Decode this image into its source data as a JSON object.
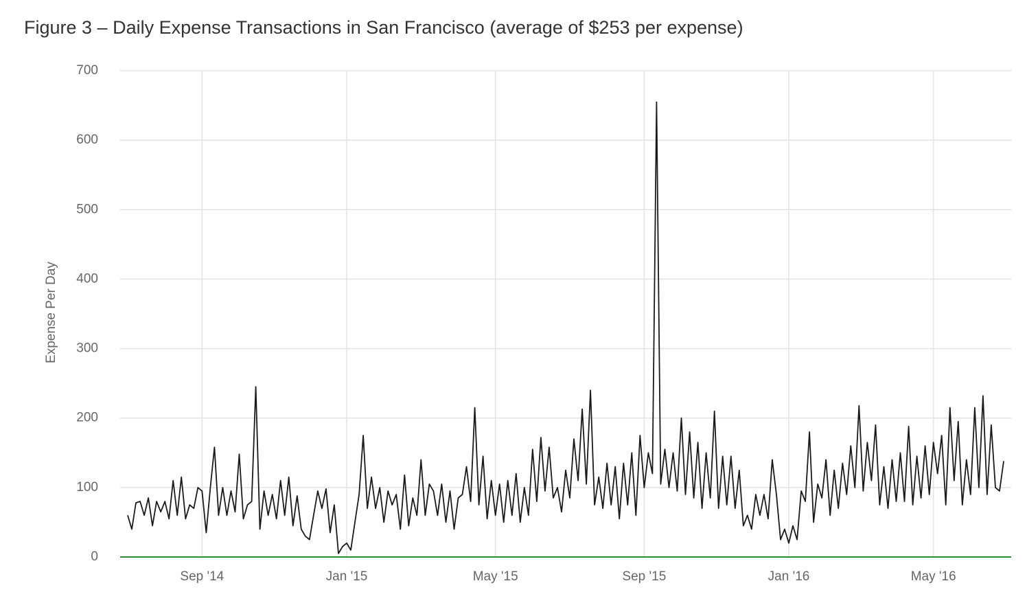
{
  "chart_data": {
    "type": "line",
    "title": "Figure 3 – Daily Expense Transactions in San Francisco (average of $253 per expense)",
    "y_label": "Expense Per Day",
    "categories": [
      null,
      null,
      null,
      null,
      null,
      null,
      null,
      null,
      null,
      null,
      null,
      null,
      null,
      null,
      null,
      null,
      null,
      null,
      "Sep '14",
      null,
      null,
      null,
      null,
      null,
      null,
      null,
      null,
      null,
      null,
      null,
      null,
      null,
      null,
      null,
      null,
      null,
      null,
      null,
      null,
      null,
      null,
      null,
      null,
      null,
      null,
      null,
      null,
      null,
      null,
      null,
      null,
      null,
      null,
      "Jan '15",
      null,
      null,
      null,
      null,
      null,
      null,
      null,
      null,
      null,
      null,
      null,
      null,
      null,
      null,
      null,
      null,
      null,
      null,
      null,
      null,
      null,
      null,
      null,
      null,
      null,
      null,
      null,
      null,
      null,
      null,
      null,
      null,
      null,
      null,
      null,
      "May '15",
      null,
      null,
      null,
      null,
      null,
      null,
      null,
      null,
      null,
      null,
      null,
      null,
      null,
      null,
      null,
      null,
      null,
      null,
      null,
      null,
      null,
      null,
      null,
      null,
      null,
      null,
      null,
      null,
      null,
      null,
      null,
      null,
      null,
      null,
      null,
      "Sep '15",
      null,
      null,
      null,
      null,
      null,
      null,
      null,
      null,
      null,
      null,
      null,
      null,
      null,
      null,
      null,
      null,
      null,
      null,
      null,
      null,
      null,
      null,
      null,
      null,
      null,
      null,
      null,
      null,
      null,
      null,
      null,
      null,
      null,
      null,
      "Jan '16",
      null,
      null,
      null,
      null,
      null,
      null,
      null,
      null,
      null,
      null,
      null,
      null,
      null,
      null,
      null,
      null,
      null,
      null,
      null,
      null,
      null,
      null,
      null,
      null,
      null,
      null,
      null,
      null,
      null,
      null,
      null,
      null,
      null,
      null,
      "May '16",
      null,
      null,
      null,
      null,
      null,
      null,
      null,
      null,
      null,
      null,
      null,
      null,
      null,
      null,
      null,
      null,
      null
    ],
    "values": [
      60,
      40,
      78,
      80,
      60,
      85,
      45,
      80,
      65,
      80,
      55,
      110,
      60,
      115,
      55,
      75,
      70,
      100,
      95,
      35,
      100,
      158,
      60,
      100,
      60,
      95,
      65,
      148,
      55,
      75,
      80,
      245,
      40,
      95,
      60,
      90,
      55,
      110,
      60,
      115,
      45,
      88,
      40,
      30,
      25,
      60,
      95,
      70,
      98,
      35,
      75,
      5,
      15,
      20,
      10,
      50,
      90,
      175,
      70,
      115,
      70,
      100,
      50,
      95,
      75,
      90,
      40,
      118,
      45,
      85,
      60,
      140,
      60,
      105,
      95,
      60,
      105,
      50,
      95,
      40,
      85,
      90,
      130,
      80,
      215,
      75,
      145,
      55,
      110,
      60,
      105,
      50,
      110,
      60,
      120,
      50,
      100,
      60,
      155,
      80,
      172,
      95,
      158,
      85,
      100,
      65,
      125,
      85,
      170,
      110,
      213,
      105,
      240,
      75,
      115,
      70,
      135,
      75,
      130,
      55,
      135,
      75,
      150,
      60,
      175,
      100,
      150,
      120,
      655,
      105,
      155,
      100,
      150,
      95,
      200,
      90,
      180,
      85,
      165,
      70,
      150,
      85,
      210,
      70,
      145,
      75,
      145,
      70,
      125,
      45,
      60,
      40,
      90,
      60,
      90,
      55,
      140,
      90,
      25,
      40,
      20,
      45,
      25,
      95,
      80,
      180,
      50,
      105,
      85,
      140,
      60,
      125,
      70,
      135,
      90,
      160,
      100,
      218,
      95,
      165,
      110,
      190,
      75,
      130,
      70,
      140,
      80,
      150,
      80,
      188,
      75,
      145,
      85,
      160,
      90,
      165,
      120,
      175,
      75,
      215,
      110,
      195,
      75,
      140,
      90,
      215,
      100,
      232,
      90,
      190,
      100,
      95,
      138
    ],
    "color": "#1a1a1a",
    "ylim": [
      0,
      700
    ],
    "yticks": [
      0,
      100,
      200,
      300,
      400,
      500,
      600,
      700
    ],
    "grid": true,
    "zero_line_color": "#2e8b2e"
  }
}
